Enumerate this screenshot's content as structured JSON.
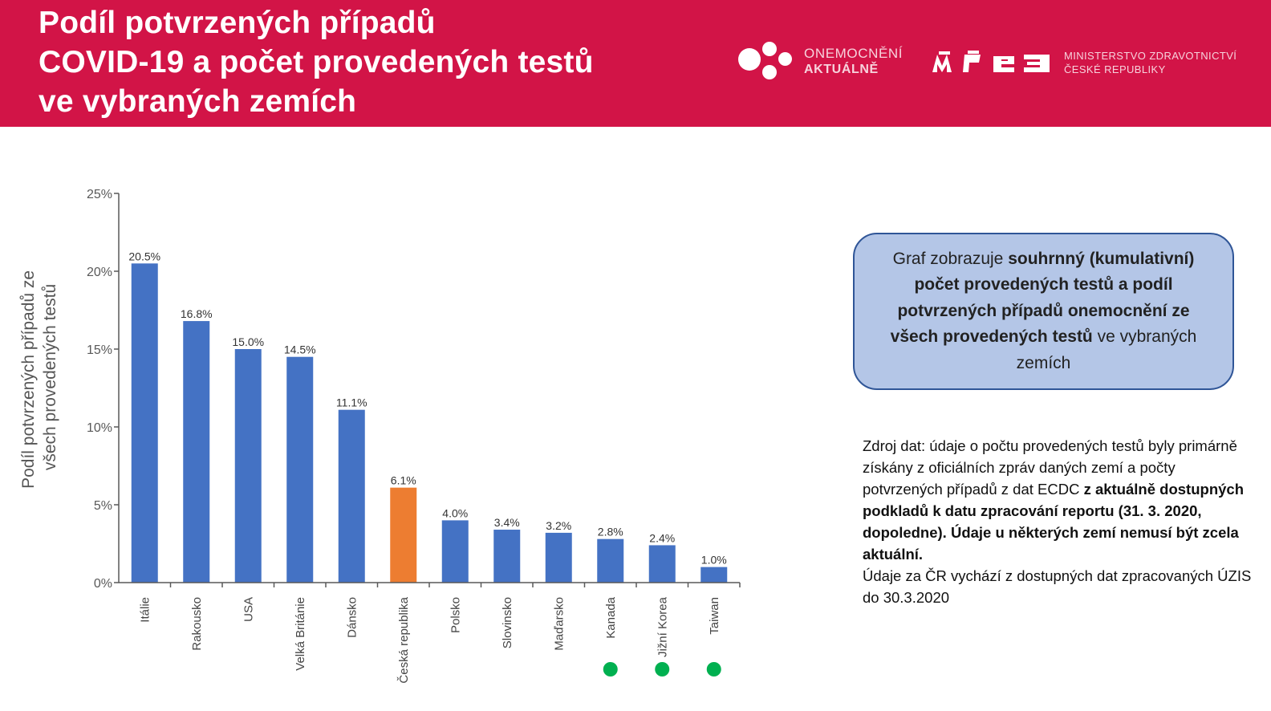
{
  "header": {
    "title_lines": [
      "Podíl potvrzených případů",
      "COVID-19 a počet provedených testů",
      "ve vybraných zemích"
    ],
    "logo_onemocneni": {
      "line1": "ONEMOCNĚNÍ",
      "line2": "AKTUÁLNĚ"
    },
    "logo_ministerstvo": {
      "line1": "MINISTERSTVO ZDRAVOTNICTVÍ",
      "line2": "ČESKÉ REPUBLIKY"
    },
    "brand_color": "#d21447"
  },
  "chart_data": {
    "type": "bar",
    "ylabel": "Podíl potvrzených případů ze všech provedených testů",
    "ylim": [
      0,
      25
    ],
    "yticks": [
      "0%",
      "5%",
      "10%",
      "15%",
      "20%",
      "25%"
    ],
    "categories": [
      "Itálie",
      "Rakousko",
      "USA",
      "Velká Británie",
      "Dánsko",
      "Česká republika",
      "Polsko",
      "Slovinsko",
      "Maďarsko",
      "Kanada",
      "Jižní Korea",
      "Taiwan"
    ],
    "values": [
      20.5,
      16.8,
      15.0,
      14.5,
      11.1,
      6.1,
      4.0,
      3.4,
      3.2,
      2.8,
      2.4,
      1.0
    ],
    "value_labels": [
      "20.5%",
      "16.8%",
      "15.0%",
      "14.5%",
      "11.1%",
      "6.1%",
      "4.0%",
      "3.4%",
      "3.2%",
      "2.8%",
      "2.4%",
      "1.0%"
    ],
    "highlighted_category": "Česká republika",
    "green_marker_categories": [
      "Kanada",
      "Jižní Korea",
      "Taiwan"
    ],
    "colors": {
      "bar": "#4472c4",
      "highlight": "#ed7d31",
      "marker": "#00b050",
      "axis": "#595959"
    },
    "grid": false,
    "legend": "none"
  },
  "info_box": {
    "runs": [
      {
        "text": "Graf zobrazuje ",
        "bold": false
      },
      {
        "text": "souhrnný (kumulativní) počet provedených testů a podíl potvrzených případů onemocnění ze všech provedených testů",
        "bold": true
      },
      {
        "text": " ve vybraných zemích",
        "bold": false
      }
    ]
  },
  "source": {
    "runs": [
      {
        "text": "Zdroj dat: údaje o počtu provedených testů byly primárně získány z oficiálních zpráv daných zemí a počty potvrzených případů z dat ECDC ",
        "bold": false
      },
      {
        "text": "z aktuálně dostupných podkladů k datu zpracování reportu (31. 3. 2020, dopoledne). Údaje u některých zemí nemusí být zcela aktuální.",
        "bold": true
      }
    ],
    "note": "Údaje za ČR vychází z dostupných dat zpracovaných ÚZIS do 30.3.2020"
  }
}
